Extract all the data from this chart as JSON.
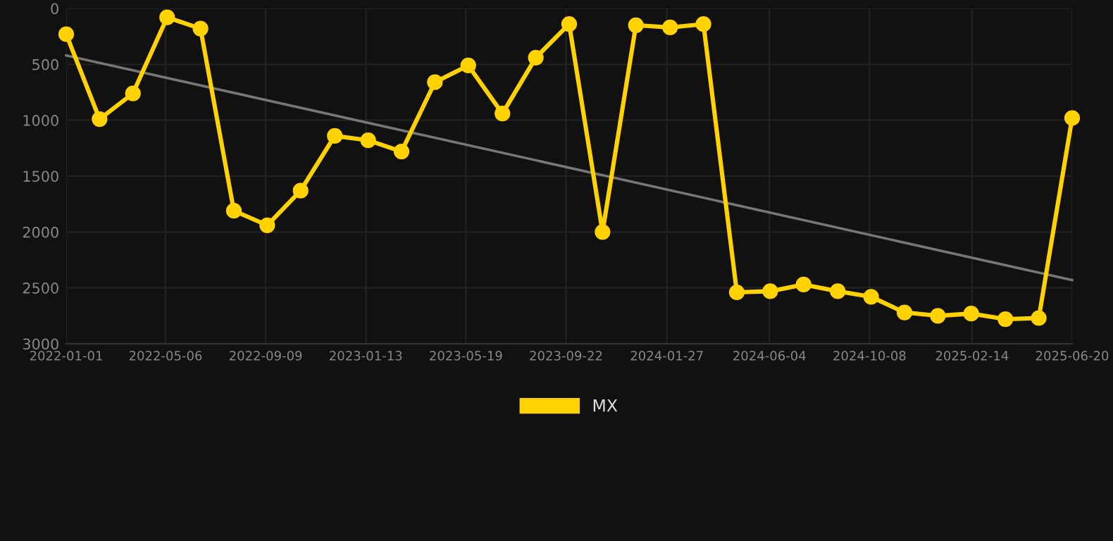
{
  "chart_data": {
    "type": "line",
    "series": [
      {
        "name": "MX",
        "color": "#ffd200",
        "marker": "circle",
        "x": [
          "2022-01-01",
          "2022-02-12",
          "2022-03-26",
          "2022-05-08",
          "2022-06-19",
          "2022-07-31",
          "2022-09-11",
          "2022-10-23",
          "2022-12-05",
          "2023-01-16",
          "2023-02-27",
          "2023-04-10",
          "2023-05-22",
          "2023-07-04",
          "2023-08-15",
          "2023-09-26",
          "2023-11-07",
          "2023-12-19",
          "2024-01-31",
          "2024-03-13",
          "2024-04-24",
          "2024-06-05",
          "2024-07-17",
          "2024-08-29",
          "2024-10-10",
          "2024-11-21",
          "2025-01-02",
          "2025-02-13",
          "2025-03-28",
          "2025-05-09",
          "2025-06-20"
        ],
        "values": [
          230,
          990,
          760,
          80,
          180,
          1810,
          1940,
          1630,
          1140,
          1180,
          1280,
          660,
          510,
          940,
          440,
          140,
          2000,
          150,
          170,
          140,
          2540,
          2530,
          2470,
          2530,
          2580,
          2720,
          2750,
          2730,
          2780,
          2770,
          980
        ]
      },
      {
        "type": "line",
        "color": "#777777",
        "marker": "none",
        "x": [
          "2022-01-01",
          "2025-06-20"
        ],
        "values": [
          420,
          2430
        ]
      }
    ],
    "ylim": [
      3000,
      0
    ],
    "yticks": [
      0,
      500,
      1000,
      1500,
      2000,
      2500,
      3000
    ],
    "xlim": [
      "2022-01-01",
      "2025-06-20"
    ],
    "xticks": [
      {
        "value": "2022-01-01",
        "label": "2022-01-01"
      },
      {
        "value": "2022-05-06",
        "label": "2022-05-06"
      },
      {
        "value": "2022-09-09",
        "label": "2022-09-09"
      },
      {
        "value": "2023-01-13",
        "label": "2023-01-13"
      },
      {
        "value": "2023-05-19",
        "label": "2023-05-19"
      },
      {
        "value": "2023-09-22",
        "label": "2023-09-22"
      },
      {
        "value": "2024-01-27",
        "label": "2024-01-27"
      },
      {
        "value": "2024-06-04",
        "label": "2024-06-04"
      },
      {
        "value": "2024-10-08",
        "label": "2024-10-08"
      },
      {
        "value": "2025-02-14",
        "label": "2025-02-14"
      },
      {
        "value": "2025-06-20",
        "label": "2025-06-20"
      }
    ],
    "grid": true,
    "legend": "bottom",
    "line_style": "solid"
  }
}
